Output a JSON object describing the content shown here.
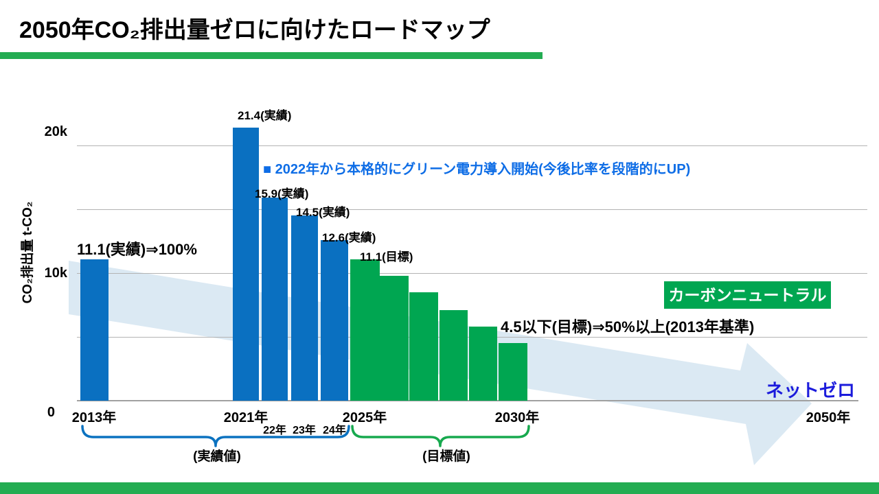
{
  "header": {
    "title": "2050年CO₂排出量ゼロに向けたロードマップ"
  },
  "chart_data": {
    "type": "bar",
    "title": "2050年CO₂排出量ゼロに向けたロードマップ",
    "ylabel": "CO₂排出量 t-CO₂",
    "xlabel": "",
    "values_unit": "thousand t-CO₂",
    "ylim_thousand_t": [
      0,
      23
    ],
    "grid": true,
    "legend": "none",
    "group_colors": {
      "actual": "#0a70c1",
      "target": "#00a651"
    },
    "gridline_values_thousand": [
      5,
      10,
      15,
      20
    ],
    "bars": [
      {
        "year": "2013",
        "label": "2013年",
        "value": 11.1,
        "group": "actual"
      },
      {
        "year": "2021",
        "label": "2021年",
        "value": 21.4,
        "group": "actual"
      },
      {
        "year": "2022",
        "label": "22年",
        "value": 15.9,
        "group": "actual"
      },
      {
        "year": "2023",
        "label": "23年",
        "value": 14.5,
        "group": "actual"
      },
      {
        "year": "2024",
        "label": "24年",
        "value": 12.6,
        "group": "actual"
      },
      {
        "year": "2025",
        "label": "2025年",
        "value": 11.1,
        "group": "target"
      },
      {
        "year": "2026",
        "label": "",
        "value": 9.8,
        "group": "target"
      },
      {
        "year": "2027",
        "label": "",
        "value": 8.5,
        "group": "target"
      },
      {
        "year": "2028",
        "label": "",
        "value": 7.1,
        "group": "target"
      },
      {
        "year": "2029",
        "label": "",
        "value": 5.8,
        "group": "target"
      },
      {
        "year": "2030",
        "label": "2030年",
        "value": 4.5,
        "group": "target"
      }
    ]
  },
  "axis": {
    "y_title": "CO₂排出量 t-CO₂",
    "y_ticks": [
      "20k",
      "10k",
      "0"
    ],
    "x_ticks": [
      "2013年",
      "2021年",
      "2025年",
      "2030年",
      "2050年"
    ],
    "x_sub_ticks": [
      "22年",
      "23年",
      "24年"
    ]
  },
  "annotations": {
    "bar_2013": "11.1(実績)⇒100%",
    "bar_2021": "21.4(実績)",
    "bar_2022": "15.9(実績)",
    "bar_2023": "14.5(実績)",
    "bar_2024": "12.6(実績)",
    "bar_2025": "11.1(目標)",
    "bar_2030": "4.5以下(目標)⇒50%以上(2013年基準)",
    "green_power_note": "■ 2022年から本格的にグリーン電力導入開始(今後比率を段階的にUP)",
    "carbon_neutral_badge": "カーボンニュートラル",
    "net_zero": "ネットゼロ",
    "actual_brace_label": "(実績値)",
    "target_brace_label": "(目標値)"
  },
  "colors": {
    "accent_green": "#23ac52",
    "actual_bar_blue": "#0a70c1",
    "target_bar_green": "#00a651",
    "badge_green": "#00a651",
    "note_blue": "#0e6de6",
    "net_zero_blue": "#1b1bdc",
    "arrow_fill": "#dbe9f3",
    "gridline_gray": "#b3b3b3",
    "brace_blue": "#0b72c0",
    "brace_green": "#17a94e"
  }
}
